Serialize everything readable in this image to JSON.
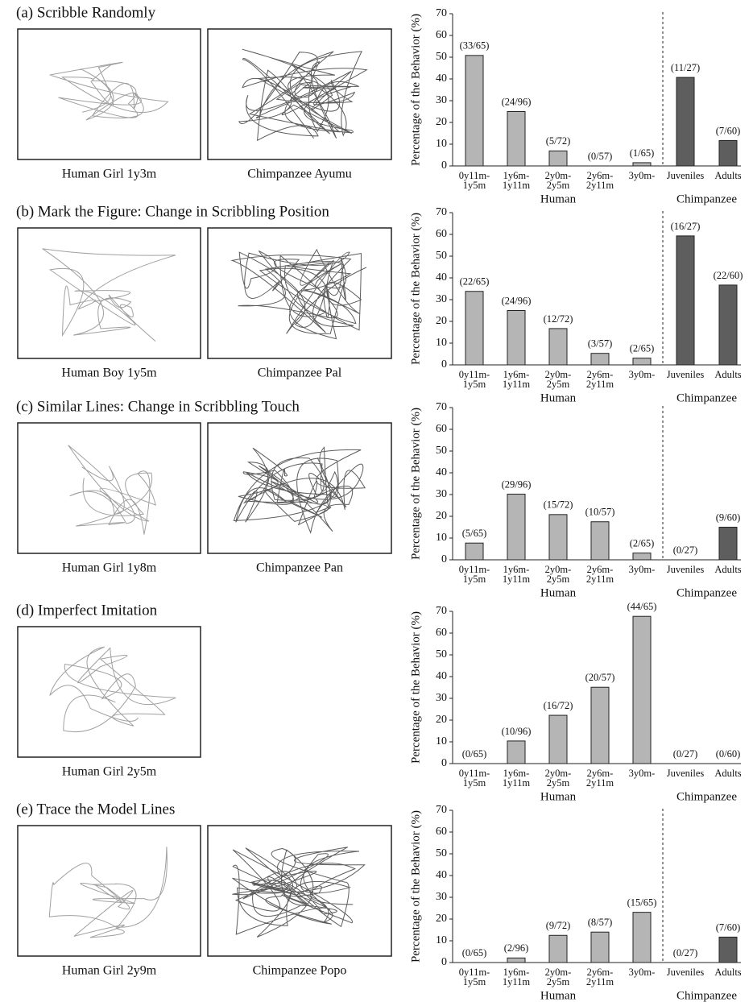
{
  "chart_data": [
    {
      "type": "bar",
      "title": "(a) Scribble Randomly",
      "captions": [
        "Human Girl 1y3m",
        "Chimpanzee Ayumu"
      ],
      "y_label": "Percentage of the Behavior (%)",
      "categories": [
        [
          "0y11m-",
          "1y5m"
        ],
        [
          "1y6m-",
          "1y11m"
        ],
        [
          "2y0m-",
          "2y5m"
        ],
        [
          "2y6m-",
          "2y11m"
        ],
        [
          "3y0m-"
        ],
        [
          "Juveniles"
        ],
        [
          "Adults"
        ]
      ],
      "series": [
        {
          "name": "Human",
          "color": "#b5b5b5",
          "values": [
            50.8,
            25,
            6.9,
            0,
            1.5,
            null,
            null
          ],
          "value_labels": [
            "(33/65)",
            "(24/96)",
            "(5/72)",
            "(0/57)",
            "(1/65)",
            null,
            null
          ]
        },
        {
          "name": "Chimpanzee",
          "color": "#5e5e5e",
          "values": [
            null,
            null,
            null,
            null,
            null,
            40.7,
            11.7
          ],
          "value_labels": [
            null,
            null,
            null,
            null,
            null,
            "(11/27)",
            "(7/60)"
          ]
        }
      ],
      "separator": true,
      "ylim": [
        0,
        70
      ],
      "yticks": [
        0,
        10,
        20,
        30,
        40,
        50,
        60,
        70
      ]
    },
    {
      "type": "bar",
      "title": "(b) Mark the Figure: Change in Scribbling Position",
      "captions": [
        "Human Boy 1y5m",
        "Chimpanzee Pal"
      ],
      "y_label": "Percentage of the Behavior (%)",
      "categories": [
        [
          "0y11m-",
          "1y5m"
        ],
        [
          "1y6m-",
          "1y11m"
        ],
        [
          "2y0m-",
          "2y5m"
        ],
        [
          "2y6m-",
          "2y11m"
        ],
        [
          "3y0m-"
        ],
        [
          "Juveniles"
        ],
        [
          "Adults"
        ]
      ],
      "series": [
        {
          "name": "Human",
          "color": "#b5b5b5",
          "values": [
            33.8,
            25,
            16.7,
            5.3,
            3.1,
            null,
            null
          ],
          "value_labels": [
            "(22/65)",
            "(24/96)",
            "(12/72)",
            "(3/57)",
            "(2/65)",
            null,
            null
          ]
        },
        {
          "name": "Chimpanzee",
          "color": "#5e5e5e",
          "values": [
            null,
            null,
            null,
            null,
            null,
            59.3,
            36.7
          ],
          "value_labels": [
            null,
            null,
            null,
            null,
            null,
            "(16/27)",
            "(22/60)"
          ]
        }
      ],
      "separator": true,
      "ylim": [
        0,
        70
      ],
      "yticks": [
        0,
        10,
        20,
        30,
        40,
        50,
        60,
        70
      ]
    },
    {
      "type": "bar",
      "title": "(c) Similar Lines: Change in Scribbling Touch",
      "captions": [
        "Human Girl 1y8m",
        "Chimpanzee Pan"
      ],
      "y_label": "Percentage of the Behavior (%)",
      "categories": [
        [
          "0y11m-",
          "1y5m"
        ],
        [
          "1y6m-",
          "1y11m"
        ],
        [
          "2y0m-",
          "2y5m"
        ],
        [
          "2y6m-",
          "2y11m"
        ],
        [
          "3y0m-"
        ],
        [
          "Juveniles"
        ],
        [
          "Adults"
        ]
      ],
      "series": [
        {
          "name": "Human",
          "color": "#b5b5b5",
          "values": [
            7.7,
            30.2,
            20.8,
            17.5,
            3.1,
            null,
            null
          ],
          "value_labels": [
            "(5/65)",
            "(29/96)",
            "(15/72)",
            "(10/57)",
            "(2/65)",
            null,
            null
          ]
        },
        {
          "name": "Chimpanzee",
          "color": "#5e5e5e",
          "values": [
            null,
            null,
            null,
            null,
            null,
            0,
            15
          ],
          "value_labels": [
            null,
            null,
            null,
            null,
            null,
            "(0/27)",
            "(9/60)"
          ]
        }
      ],
      "separator": true,
      "ylim": [
        0,
        70
      ],
      "yticks": [
        0,
        10,
        20,
        30,
        40,
        50,
        60,
        70
      ]
    },
    {
      "type": "bar",
      "title": "(d) Imperfect Imitation",
      "captions": [
        "Human Girl 2y5m"
      ],
      "y_label": "Percentage of the Behavior (%)",
      "categories": [
        [
          "0y11m-",
          "1y5m"
        ],
        [
          "1y6m-",
          "1y11m"
        ],
        [
          "2y0m-",
          "2y5m"
        ],
        [
          "2y6m-",
          "2y11m"
        ],
        [
          "3y0m-"
        ],
        [
          "Juveniles"
        ],
        [
          "Adults"
        ]
      ],
      "series": [
        {
          "name": "Human",
          "color": "#b5b5b5",
          "values": [
            0,
            10.4,
            22.2,
            35.1,
            67.7,
            null,
            null
          ],
          "value_labels": [
            "(0/65)",
            "(10/96)",
            "(16/72)",
            "(20/57)",
            "(44/65)",
            null,
            null
          ]
        },
        {
          "name": "Chimpanzee",
          "color": "#5e5e5e",
          "values": [
            null,
            null,
            null,
            null,
            null,
            0,
            0
          ],
          "value_labels": [
            null,
            null,
            null,
            null,
            null,
            "(0/27)",
            "(0/60)"
          ]
        }
      ],
      "separator": false,
      "ylim": [
        0,
        70
      ],
      "yticks": [
        0,
        10,
        20,
        30,
        40,
        50,
        60,
        70
      ]
    },
    {
      "type": "bar",
      "title": "(e) Trace the Model Lines",
      "captions": [
        "Human Girl 2y9m",
        "Chimpanzee Popo"
      ],
      "y_label": "Percentage of the Behavior (%)",
      "categories": [
        [
          "0y11m-",
          "1y5m"
        ],
        [
          "1y6m-",
          "1y11m"
        ],
        [
          "2y0m-",
          "2y5m"
        ],
        [
          "2y6m-",
          "2y11m"
        ],
        [
          "3y0m-"
        ],
        [
          "Juveniles"
        ],
        [
          "Adults"
        ]
      ],
      "series": [
        {
          "name": "Human",
          "color": "#b5b5b5",
          "values": [
            0,
            2.1,
            12.5,
            14.0,
            23.1,
            null,
            null
          ],
          "value_labels": [
            "(0/65)",
            "(2/96)",
            "(9/72)",
            "(8/57)",
            "(15/65)",
            null,
            null
          ]
        },
        {
          "name": "Chimpanzee",
          "color": "#5e5e5e",
          "values": [
            null,
            null,
            null,
            null,
            null,
            0,
            11.7
          ],
          "value_labels": [
            null,
            null,
            null,
            null,
            null,
            "(0/27)",
            "(7/60)"
          ]
        }
      ],
      "separator": true,
      "ylim": [
        0,
        70
      ],
      "yticks": [
        0,
        10,
        20,
        30,
        40,
        50,
        60,
        70
      ]
    }
  ]
}
